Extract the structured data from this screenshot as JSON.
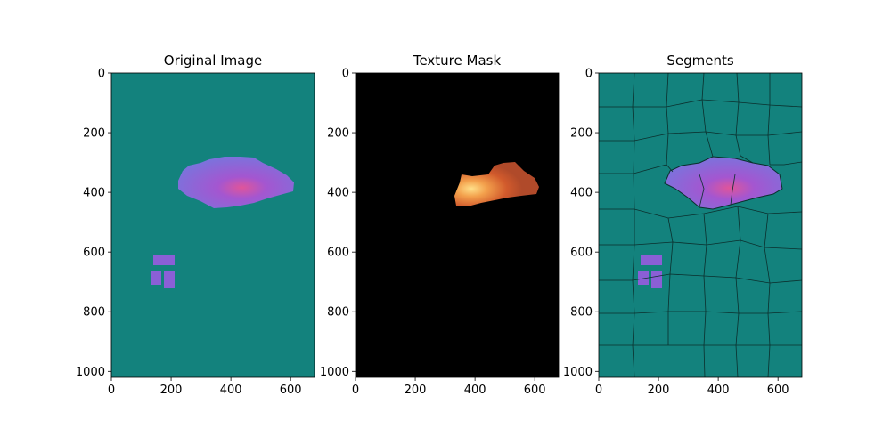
{
  "chart_data": [
    {
      "type": "image",
      "title": "Original Image",
      "xlim": [
        0,
        680
      ],
      "ylim": [
        1020,
        0
      ],
      "x_ticks": [
        0,
        200,
        400,
        600
      ],
      "y_ticks": [
        0,
        200,
        400,
        600,
        800,
        1000
      ],
      "background_color": "#13827d",
      "content": "teal background with purple-magenta blobs",
      "blob_color": "#8a5fd6",
      "highlight_color": "#e0559a"
    },
    {
      "type": "image",
      "title": "Texture Mask",
      "xlim": [
        0,
        680
      ],
      "ylim": [
        1020,
        0
      ],
      "x_ticks": [
        0,
        200,
        400,
        600
      ],
      "y_ticks": [
        0,
        200,
        400,
        600,
        800,
        1000
      ],
      "background_color": "#000000",
      "content": "black background with orange textured region",
      "blob_color": "#c9512a",
      "highlight_color": "#ffd873"
    },
    {
      "type": "image",
      "title": "Segments",
      "xlim": [
        0,
        680
      ],
      "ylim": [
        1020,
        0
      ],
      "x_ticks": [
        0,
        200,
        400,
        600
      ],
      "y_ticks": [
        0,
        200,
        400,
        600,
        800,
        1000
      ],
      "background_color": "#13827d",
      "content": "superpixel segmentation boundaries over original image",
      "boundary_color": "#0b2f2d"
    }
  ]
}
